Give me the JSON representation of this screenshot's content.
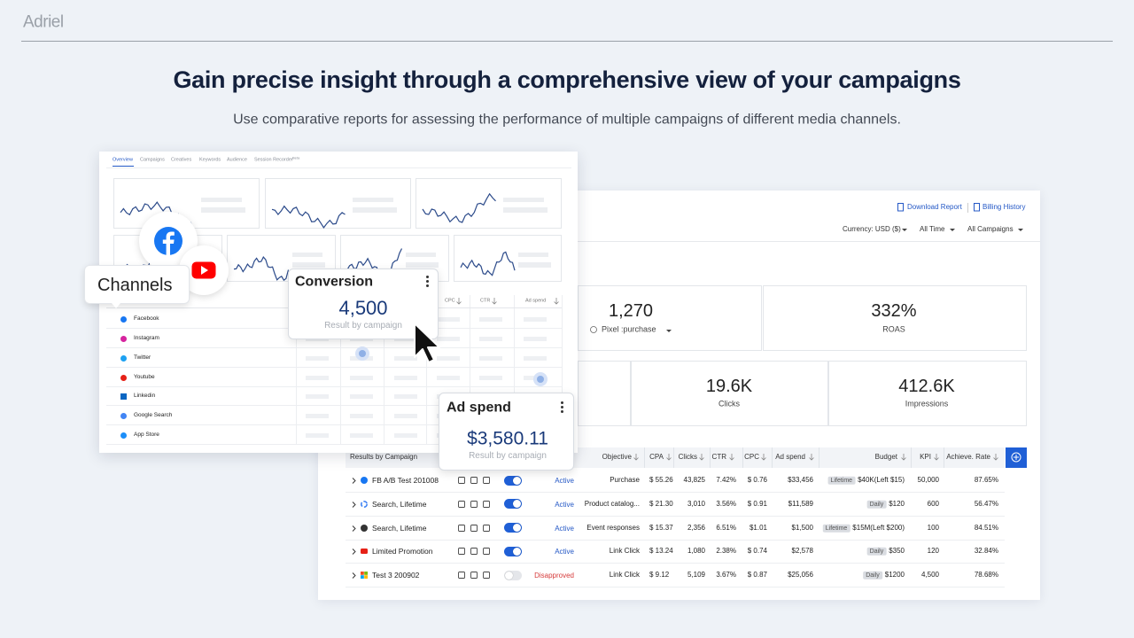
{
  "brand": "Adriel",
  "header": {
    "title": "Gain precise insight through a comprehensive view of your campaigns",
    "subtitle": "Use comparative reports for assessing the performance of multiple campaigns of different media channels."
  },
  "overview": {
    "tabs": [
      "Overview",
      "Campaigns",
      "Creatives",
      "Keywords",
      "Audience",
      "Session Recorder"
    ],
    "beta": "Beta",
    "columns": [
      "CPC",
      "CTR",
      "Ad spend"
    ],
    "channels_title": "Channels",
    "channels": [
      "Facebook",
      "Instagram",
      "Twitter",
      "Youtube",
      "Linkedin",
      "Google Search",
      "App Store"
    ]
  },
  "conversion": {
    "title": "Conversion",
    "value": "4,500",
    "caption": "Result by campaign"
  },
  "ad_spend": {
    "title": "Ad spend",
    "value": "$3,580.11",
    "caption": "Result by campaign"
  },
  "report": {
    "links": [
      "Download Report",
      "Billing History"
    ],
    "filters": [
      "Currency: USD ($)",
      "All Time",
      "All Campaigns"
    ],
    "kpis": [
      {
        "value": "1,270",
        "label": "Pixel :purchase"
      },
      {
        "value": "332%",
        "label": "ROAS"
      },
      {
        "value": "19.6K",
        "label": "Clicks"
      },
      {
        "value": "412.6K",
        "label": "Impressions"
      }
    ],
    "table": {
      "columns": [
        "Results by Campaign",
        "Objective",
        "CPA",
        "Clicks",
        "CTR",
        "CPC",
        "Ad spend",
        "Budget",
        "KPI",
        "Achieve. Rate"
      ],
      "rows": [
        {
          "name": "FB A/B Test 201008",
          "status": "Active",
          "objective": "Purchase",
          "cpa": "$ 55.26",
          "clicks": "43,825",
          "ctr": "7.42%",
          "cpc": "$ 0.76",
          "ad_spend": "$33,456",
          "budget_type": "Lifetime",
          "budget": "$40K(Left $15)",
          "kpi": "50,000",
          "rate": "87.65%"
        },
        {
          "name": "Search, Lifetime",
          "status": "Active",
          "objective": "Product catalog...",
          "cpa": "$ 21.30",
          "clicks": "3,010",
          "ctr": "3.56%",
          "cpc": "$ 0.91",
          "ad_spend": "$11,589",
          "budget_type": "Daily",
          "budget": "$120",
          "kpi": "600",
          "rate": "56.47%"
        },
        {
          "name": "Search, Lifetime",
          "status": "Active",
          "objective": "Event responses",
          "cpa": "$ 15.37",
          "clicks": "2,356",
          "ctr": "6.51%",
          "cpc": "$1.01",
          "ad_spend": "$1,500",
          "budget_type": "Lifetime",
          "budget": "$15M(Left $200)",
          "kpi": "100",
          "rate": "84.51%"
        },
        {
          "name": "Limited Promotion",
          "status": "Active",
          "objective": "Link Click",
          "cpa": "$ 13.24",
          "clicks": "1,080",
          "ctr": "2.38%",
          "cpc": "$ 0.74",
          "ad_spend": "$2,578",
          "budget_type": "Daily",
          "budget": "$350",
          "kpi": "120",
          "rate": "32.84%"
        },
        {
          "name": "Test 3 200902",
          "status": "Disapproved",
          "objective": "Link Click",
          "cpa": "$ 9.12",
          "clicks": "5,109",
          "ctr": "3.67%",
          "cpc": "$ 0.87",
          "ad_spend": "$25,056",
          "budget_type": "Daily",
          "budget": "$1200",
          "kpi": "4,500",
          "rate": "78.68%"
        }
      ]
    }
  }
}
